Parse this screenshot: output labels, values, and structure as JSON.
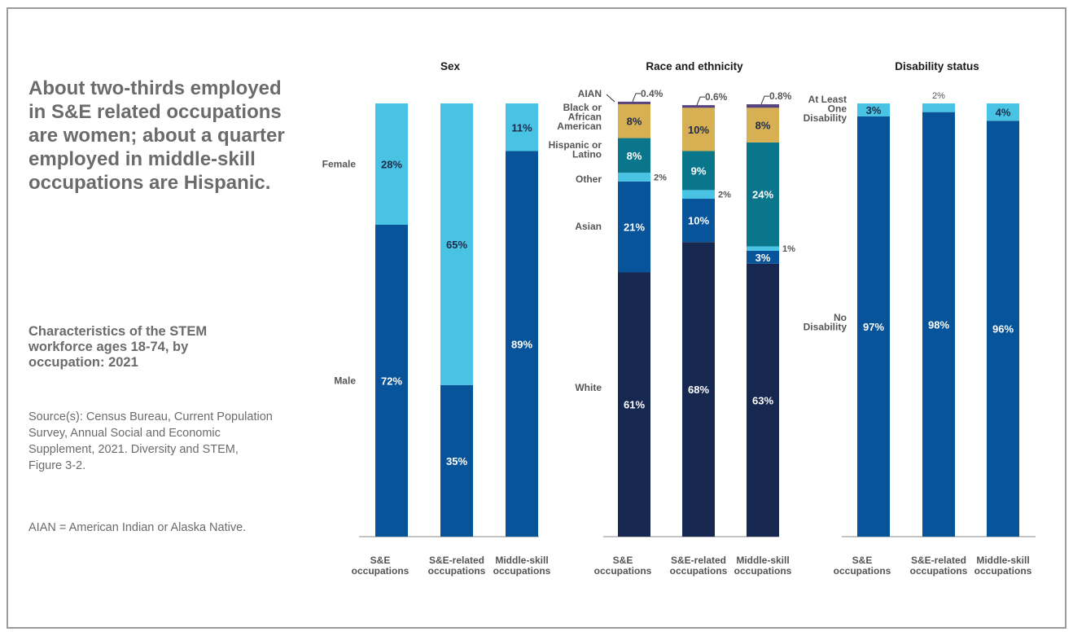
{
  "headline": "About two-thirds employed in S&E related occupations are women; about a quarter employed in middle-skill occupations are Hispanic.",
  "subtitle": "Characteristics of the STEM workforce ages 18-74, by occupation: 2021",
  "source": "Source(s): Census Bureau, Current Population Survey, Annual Social and Economic Supplement, 2021. Diversity and STEM, Figure 3-2.",
  "note": "AIAN = American Indian or Alaska Native.",
  "colors": {
    "light_blue": "#48c3e4",
    "mid_blue": "#07549a",
    "navy": "#172850",
    "teal": "#09768b",
    "gold": "#d6b052",
    "purple": "#55427e",
    "axis": "#8a8a8a",
    "label": "#555555",
    "dark_text": "#1c2b4a"
  },
  "chart_data": [
    {
      "type": "bar",
      "stacked": true,
      "title": "Sex",
      "categories": [
        "S&E occupations",
        "S&E-related occupations",
        "Middle-skill occupations"
      ],
      "series": [
        {
          "name": "Male",
          "values": [
            72,
            35,
            89
          ],
          "labels": [
            "72%",
            "35%",
            "89%"
          ]
        },
        {
          "name": "Female",
          "values": [
            28,
            65,
            11
          ],
          "labels": [
            "28%",
            "65%",
            "11%"
          ]
        }
      ],
      "ylim": [
        0,
        100
      ]
    },
    {
      "type": "bar",
      "stacked": true,
      "title": "Race and ethnicity",
      "categories": [
        "S&E occupations",
        "S&E-related occupations",
        "Middle-skill occupations"
      ],
      "series": [
        {
          "name": "White",
          "values": [
            61,
            68,
            63
          ],
          "labels": [
            "61%",
            "68%",
            "63%"
          ]
        },
        {
          "name": "Asian",
          "values": [
            21,
            10,
            3
          ],
          "labels": [
            "21%",
            "10%",
            "3%"
          ]
        },
        {
          "name": "Other",
          "values": [
            2,
            2,
            1
          ],
          "labels": [
            "2%",
            "2%",
            "1%"
          ]
        },
        {
          "name": "Hispanic or Latino",
          "values": [
            8,
            9,
            24
          ],
          "labels": [
            "8%",
            "9%",
            "24%"
          ]
        },
        {
          "name": "Black or African American",
          "values": [
            8,
            10,
            8
          ],
          "labels": [
            "8%",
            "10%",
            "8%"
          ]
        },
        {
          "name": "AIAN",
          "values": [
            0.4,
            0.6,
            0.8
          ],
          "labels": [
            "0.4%",
            "0.6%",
            "0.8%"
          ]
        }
      ],
      "ylim": [
        0,
        100
      ]
    },
    {
      "type": "bar",
      "stacked": true,
      "title": "Disability status",
      "categories": [
        "S&E occupations",
        "S&E-related occupations",
        "Middle-skill occupations"
      ],
      "series": [
        {
          "name": "No Disability",
          "values": [
            97,
            98,
            96
          ],
          "labels": [
            "97%",
            "98%",
            "96%"
          ]
        },
        {
          "name": "At Least One Disability",
          "values": [
            3,
            2,
            4
          ],
          "labels": [
            "3%",
            "2%",
            "4%"
          ]
        }
      ],
      "ylim": [
        0,
        100
      ]
    }
  ]
}
